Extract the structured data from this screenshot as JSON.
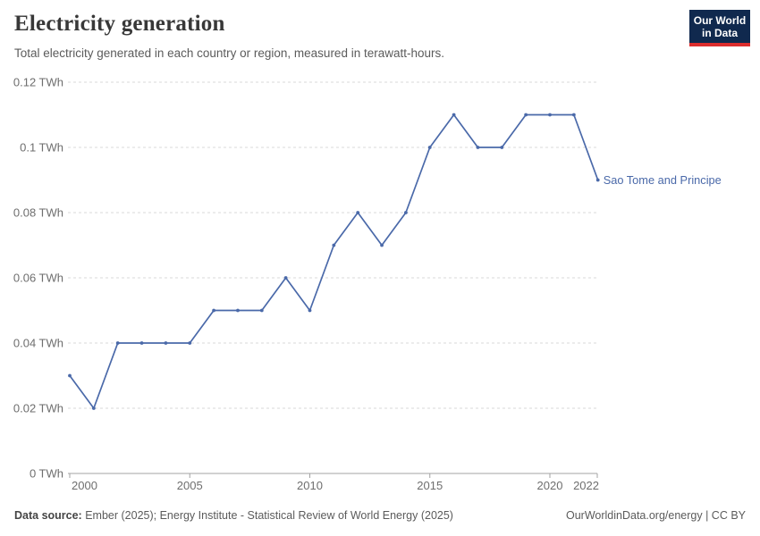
{
  "header": {
    "title": "Electricity generation",
    "subtitle": "Total electricity generated in each country or region, measured in terawatt-hours."
  },
  "logo": {
    "line1": "Our World",
    "line2": "in Data",
    "bg_color": "#10294e",
    "bar_color": "#dc2d2d",
    "text_color": "#ffffff"
  },
  "chart_data": {
    "type": "line",
    "title": "Electricity generation",
    "x": [
      2000,
      2001,
      2002,
      2003,
      2004,
      2005,
      2006,
      2007,
      2008,
      2009,
      2010,
      2011,
      2012,
      2013,
      2014,
      2015,
      2016,
      2017,
      2018,
      2019,
      2020,
      2021,
      2022
    ],
    "series": [
      {
        "name": "Sao Tome and Principe",
        "values": [
          0.03,
          0.02,
          0.04,
          0.04,
          0.04,
          0.04,
          0.05,
          0.05,
          0.05,
          0.06,
          0.05,
          0.07,
          0.08,
          0.07,
          0.08,
          0.1,
          0.11,
          0.1,
          0.1,
          0.11,
          0.11,
          0.11,
          0.09
        ]
      }
    ],
    "unit": "TWh",
    "ylim": [
      0,
      0.12
    ],
    "yticks": [
      0,
      0.02,
      0.04,
      0.06,
      0.08,
      0.1,
      0.12
    ],
    "ytick_labels": [
      "0 TWh",
      "0.02 TWh",
      "0.04 TWh",
      "0.06 TWh",
      "0.08 TWh",
      "0.1 TWh",
      "0.12 TWh"
    ],
    "xticks": [
      2000,
      2005,
      2010,
      2015,
      2020,
      2022
    ],
    "xtick_labels": [
      "2000",
      "2005",
      "2010",
      "2015",
      "2020",
      "2022"
    ],
    "grid": "horizontal-dashed",
    "legend_position": "end-of-line-label",
    "colors": {
      "line": "#4a69a9",
      "series_label": "#4a69a9",
      "gridline": "#d9d9d9",
      "axis": "#a3a3a3",
      "tick_label": "#6e6e6e"
    }
  },
  "footer": {
    "source_label": "Data source:",
    "source_text": " Ember (2025); Energy Institute - Statistical Review of World Energy (2025)",
    "attribution": "OurWorldinData.org/energy | CC BY"
  }
}
